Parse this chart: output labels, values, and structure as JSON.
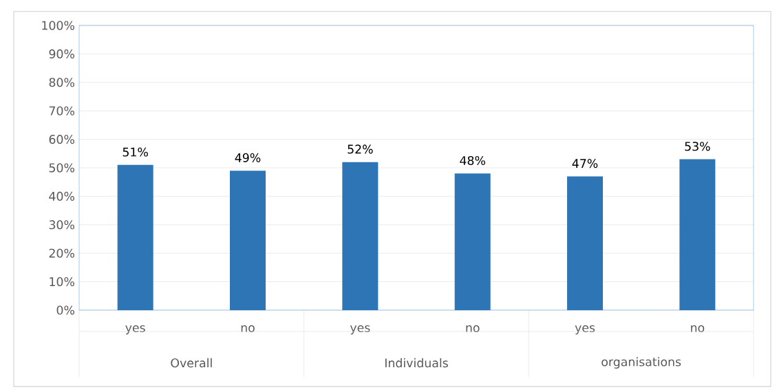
{
  "chart_data": {
    "type": "bar",
    "categories": [
      "yes",
      "no",
      "yes",
      "no",
      "yes",
      "no"
    ],
    "values": [
      51,
      49,
      52,
      48,
      47,
      53
    ],
    "value_labels": [
      "51%",
      "49%",
      "52%",
      "48%",
      "47%",
      "53%"
    ],
    "color": "#2e75b6",
    "ylim": [
      0,
      100
    ],
    "yticks": [
      {
        "value": 0,
        "label": "0%"
      },
      {
        "value": 10,
        "label": "10%"
      },
      {
        "value": 20,
        "label": "20%"
      },
      {
        "value": 30,
        "label": "30%"
      },
      {
        "value": 40,
        "label": "40%"
      },
      {
        "value": 50,
        "label": "50%"
      },
      {
        "value": 60,
        "label": "60%"
      },
      {
        "value": 70,
        "label": "70%"
      },
      {
        "value": 80,
        "label": "80%"
      },
      {
        "value": 90,
        "label": "90%"
      },
      {
        "value": 100,
        "label": "100%"
      }
    ],
    "grid": "y",
    "annotations": [
      "Overall",
      "Individuals",
      "organisations"
    ]
  }
}
